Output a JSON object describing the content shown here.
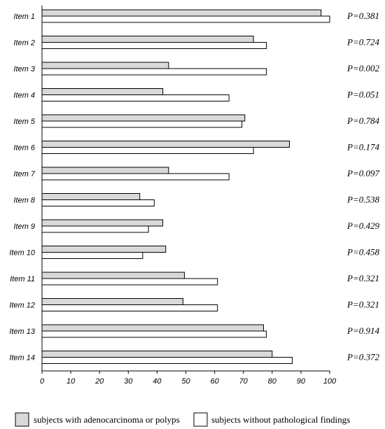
{
  "chart_data": {
    "type": "bar",
    "orientation": "horizontal",
    "categories": [
      "Item 1",
      "Item 2",
      "Item 3",
      "Item 4",
      "Item 5",
      "Item 6",
      "Item 7",
      "Item 8",
      "Item 9",
      "Item 10",
      "Item 11",
      "Item 12",
      "Item 13",
      "Item 14"
    ],
    "series": [
      {
        "name": "subjects with adenocarcinoma or polyps",
        "color": "#d9d9d9",
        "values": [
          97,
          73.5,
          44,
          42,
          70.5,
          86,
          44,
          34,
          42,
          43,
          49.5,
          49,
          77,
          80
        ]
      },
      {
        "name": "subjects without pathological findings",
        "color": "#ffffff",
        "values": [
          100,
          78,
          78,
          65,
          69.5,
          73.5,
          65,
          39,
          37,
          35,
          61,
          61,
          78,
          87
        ]
      }
    ],
    "p_values": [
      "P=0.381",
      "P=0.724",
      "P=0.002",
      "P=0.051",
      "P=0.784",
      "P=0.174",
      "P=0.097",
      "P=0.538",
      "P=0.429",
      "P=0.458",
      "P=0.321",
      "P=0.321",
      "P=0.914",
      "P=0.372"
    ],
    "xlim": [
      0,
      100
    ],
    "xticks": [
      0,
      10,
      20,
      30,
      40,
      50,
      60,
      70,
      80,
      90,
      100
    ],
    "title": "",
    "xlabel": "",
    "ylabel": "",
    "grid": false,
    "legend_placement": "bottom"
  }
}
